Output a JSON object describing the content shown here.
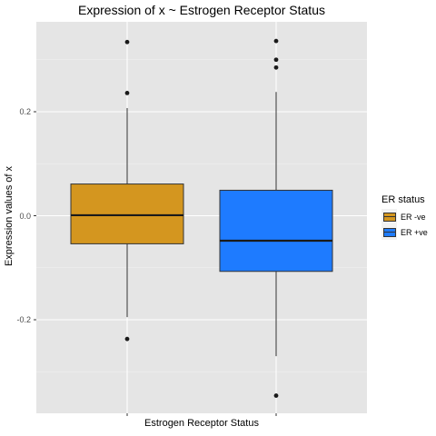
{
  "chart_data": {
    "type": "boxplot",
    "title": "Expression of x ~ Estrogen Receptor Status",
    "xlabel": "Estrogen Receptor Status",
    "ylabel": "Expression values of x",
    "ylim": [
      -0.37,
      0.38
    ],
    "yticks": [
      {
        "value": 0.2,
        "label": "0.2"
      },
      {
        "value": 0.0,
        "label": "0.0"
      },
      {
        "value": -0.2,
        "label": "-0.2"
      }
    ],
    "grid": true,
    "legend": {
      "title": "ER status",
      "position": "right",
      "items": [
        {
          "label": "ER -ve",
          "color": "#D4961F"
        },
        {
          "label": "ER +ve",
          "color": "#1E7BFF"
        }
      ]
    },
    "series": [
      {
        "name": "ER -ve",
        "color": "#D4961F",
        "whisker_low": -0.195,
        "q1": -0.054,
        "median": 0.001,
        "q3": 0.061,
        "whisker_high": 0.207,
        "outliers": [
          0.334,
          0.236,
          -0.237
        ]
      },
      {
        "name": "ER +ve",
        "color": "#1E7BFF",
        "whisker_low": -0.27,
        "q1": -0.107,
        "median": -0.048,
        "q3": 0.049,
        "whisker_high": 0.238,
        "outliers": [
          0.336,
          0.3,
          0.285,
          -0.346
        ]
      }
    ]
  }
}
